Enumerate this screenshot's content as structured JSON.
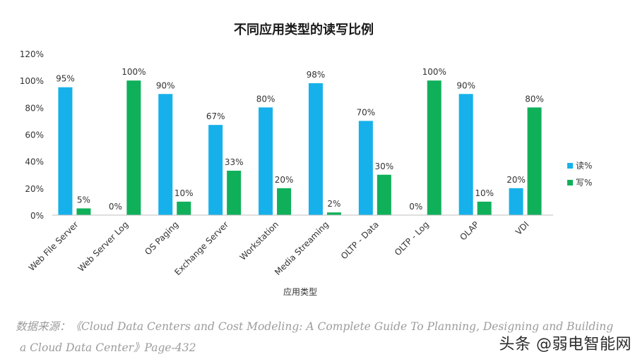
{
  "chart_data": {
    "type": "bar",
    "title": "不同应用类型的读写比例",
    "xlabel": "应用类型",
    "ylabel": "",
    "ylim": [
      0,
      120
    ],
    "yticks": [
      "0%",
      "20%",
      "40%",
      "60%",
      "80%",
      "100%",
      "120%"
    ],
    "categories": [
      "Web File Server",
      "Web Server Log",
      "OS Paging",
      "Exchange Server",
      "Workstation",
      "Media Streaming",
      "OLTP - Data",
      "OLTP - Log",
      "OLAP",
      "VDI"
    ],
    "series": [
      {
        "name": "读%",
        "color": "#16b1ea",
        "values": [
          95,
          0,
          90,
          67,
          80,
          98,
          70,
          0,
          90,
          20
        ],
        "labels": [
          "95%",
          "0%",
          "90%",
          "67%",
          "80%",
          "98%",
          "70%",
          "0%",
          "90%",
          "20%"
        ]
      },
      {
        "name": "写%",
        "color": "#10b05a",
        "values": [
          5,
          100,
          10,
          33,
          20,
          2,
          30,
          100,
          10,
          80
        ],
        "labels": [
          "5%",
          "100%",
          "10%",
          "33%",
          "20%",
          "2%",
          "30%",
          "100%",
          "10%",
          "80%"
        ]
      }
    ],
    "legend_position": "right",
    "grid": false
  },
  "source": {
    "line1": "数据来源：《Cloud Data Centers and Cost Modeling: A Complete Guide To Planning, Designing and Building",
    "line2": "a Cloud Data Center》Page-432"
  },
  "watermark": "头条 @弱电智能网"
}
